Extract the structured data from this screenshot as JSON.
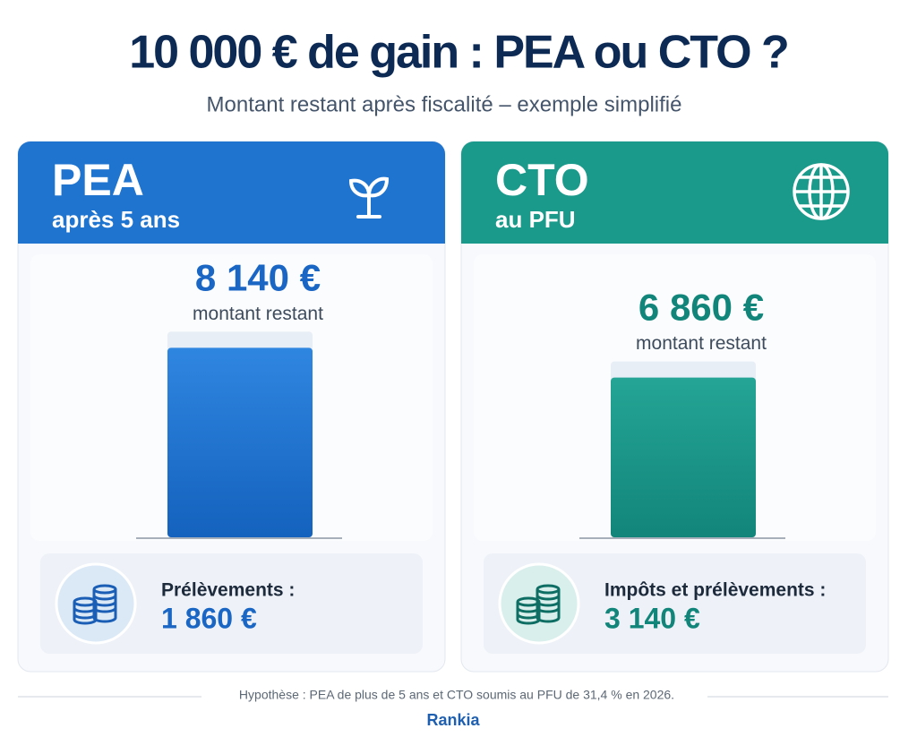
{
  "chart_data": {
    "type": "bar",
    "title": "10 000 € de gain : PEA ou CTO ?",
    "subtitle": "Montant restant après fiscalité – exemple simplifié",
    "ylim": [
      0,
      10000
    ],
    "categories": [
      "PEA",
      "CTO"
    ],
    "category_subtitles": [
      "après 5 ans",
      "au PFU"
    ],
    "colors": [
      "#1f74d0",
      "#1a9a8a"
    ],
    "values": [
      8140,
      6860
    ],
    "value_labels": [
      "8 140 €",
      "6 860 €"
    ],
    "value_caption": "montant restant",
    "deduction_titles": [
      "Prélèvements :",
      "Impôts et prélèvements :"
    ],
    "deductions": [
      1860,
      3140
    ],
    "deduction_labels": [
      "1 860 €",
      "3 140 €"
    ],
    "note": "Hypothèse : PEA de plus de 5 ans et CTO soumis au PFU de 31,4 % en 2026.",
    "brand": "Rankia"
  }
}
